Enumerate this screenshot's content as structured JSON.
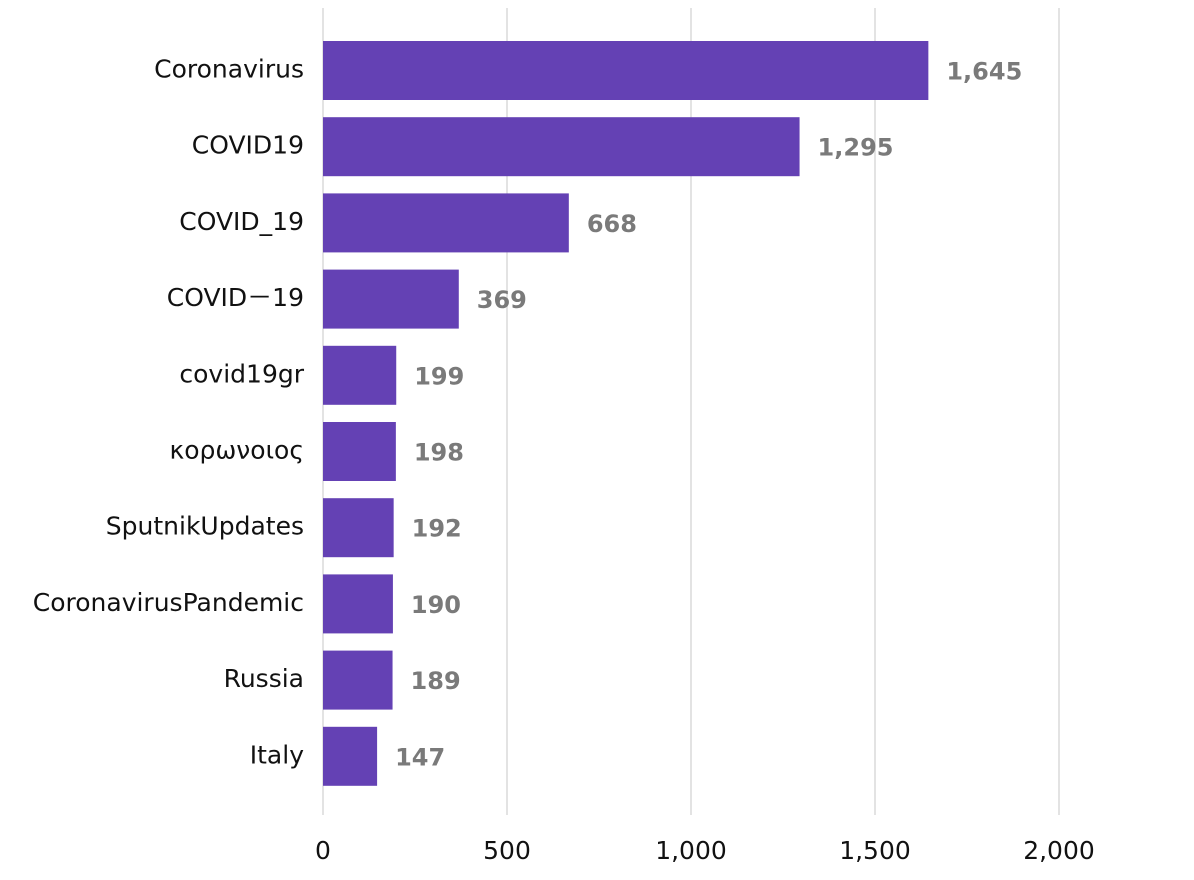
{
  "chart_data": {
    "type": "bar",
    "orientation": "horizontal",
    "categories": [
      "Coronavirus",
      "COVID19",
      "COVID_19",
      "COVID－19",
      "covid19gr",
      "κορωνοιος",
      "SputnikUpdates",
      "CoronavirusPandemic",
      "Russia",
      "Italy"
    ],
    "values": [
      1645,
      1295,
      668,
      369,
      199,
      198,
      192,
      190,
      189,
      147
    ],
    "value_labels": [
      "1,645",
      "1,295",
      "668",
      "369",
      "199",
      "198",
      "192",
      "190",
      "189",
      "147"
    ],
    "xlim": [
      0,
      2000
    ],
    "xticks": [
      0,
      500,
      1000,
      1500,
      2000
    ],
    "xtick_labels": [
      "0",
      "500",
      "1,000",
      "1,500",
      "2,000"
    ],
    "grid": "vertical",
    "legend": "none",
    "bar_color": "#6441b4",
    "value_label_color": "#7a7a7a"
  }
}
